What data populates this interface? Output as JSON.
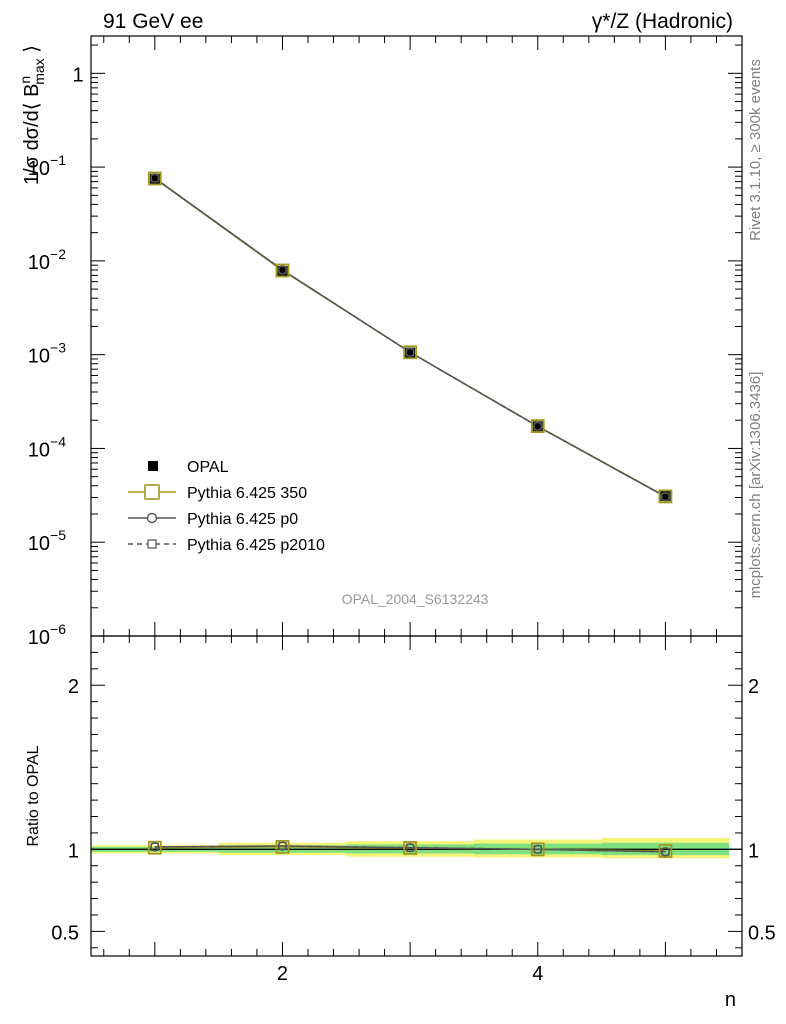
{
  "header": {
    "left": "91 GeV ee",
    "right": "γ*/Z (Hadronic)"
  },
  "side_notes": {
    "rivet": "Rivet 3.1.10, ≥ 300k events",
    "mcplots": "mcplots.cern.ch [arXiv:1306.3436]"
  },
  "analysis_id": "OPAL_2004_S6132243",
  "chart_data": [
    {
      "type": "line",
      "panel": "main",
      "ylabel": "1/σ dσ/d⟨ B^n_max ⟩",
      "yscale": "log",
      "ylim": [
        1e-06,
        2.5
      ],
      "xlim": [
        0.5,
        5.6
      ],
      "x": [
        1,
        2,
        3,
        4,
        5
      ],
      "y_tick_labels": [
        {
          "value": 1,
          "base": "1",
          "exp": ""
        },
        {
          "value": 0.1,
          "base": "10",
          "exp": "−1"
        },
        {
          "value": 0.01,
          "base": "10",
          "exp": "−2"
        },
        {
          "value": 0.001,
          "base": "10",
          "exp": "−3"
        },
        {
          "value": 0.0001,
          "base": "10",
          "exp": "−4"
        },
        {
          "value": 1e-05,
          "base": "10",
          "exp": "−5"
        },
        {
          "value": 1e-06,
          "base": "10",
          "exp": "−6"
        }
      ],
      "series": [
        {
          "name": "OPAL",
          "style": "data",
          "color": "#000000",
          "values": [
            0.075,
            0.0078,
            0.00105,
            0.000172,
            3.1e-05
          ]
        },
        {
          "name": "Pythia 6.425 350",
          "style": "open-square",
          "color": "#a09a1e",
          "values": [
            0.0755,
            0.0079,
            0.00106,
            0.000173,
            3.08e-05
          ]
        },
        {
          "name": "Pythia 6.425 p0",
          "style": "open-circle",
          "color": "#555555",
          "values": [
            0.0762,
            0.008,
            0.00106,
            0.000172,
            3.06e-05
          ]
        },
        {
          "name": "Pythia 6.425 p2010",
          "style": "dashed-square",
          "color": "#555555",
          "values": [
            0.0762,
            0.008,
            0.00106,
            0.000172,
            3.06e-05
          ]
        }
      ],
      "legend_position": "bottom-left"
    },
    {
      "type": "line",
      "panel": "ratio",
      "ylabel": "Ratio to OPAL",
      "xlabel": "n",
      "ylim": [
        0.35,
        2.3
      ],
      "xlim": [
        0.5,
        5.6
      ],
      "x": [
        1,
        2,
        3,
        4,
        5
      ],
      "x_tick_labels": [
        "2",
        "4"
      ],
      "y_tick_labels": [
        "0.5",
        "1",
        "2"
      ],
      "band_inner": [
        {
          "x0": 0.5,
          "x1": 1.5,
          "lo": 0.985,
          "hi": 1.015
        },
        {
          "x0": 1.5,
          "x1": 2.5,
          "lo": 0.98,
          "hi": 1.025
        },
        {
          "x0": 2.5,
          "x1": 3.5,
          "lo": 0.975,
          "hi": 1.03
        },
        {
          "x0": 3.5,
          "x1": 4.5,
          "lo": 0.97,
          "hi": 1.035
        },
        {
          "x0": 4.5,
          "x1": 5.5,
          "lo": 0.965,
          "hi": 1.04
        }
      ],
      "band_outer": [
        {
          "x0": 0.5,
          "x1": 1.5,
          "lo": 0.975,
          "hi": 1.025
        },
        {
          "x0": 1.5,
          "x1": 2.5,
          "lo": 0.965,
          "hi": 1.04
        },
        {
          "x0": 2.5,
          "x1": 3.5,
          "lo": 0.955,
          "hi": 1.05
        },
        {
          "x0": 3.5,
          "x1": 4.5,
          "lo": 0.95,
          "hi": 1.06
        },
        {
          "x0": 4.5,
          "x1": 5.5,
          "lo": 0.945,
          "hi": 1.07
        }
      ],
      "series": [
        {
          "name": "Pythia 6.425 350",
          "style": "open-square",
          "color": "#a09a1e",
          "values": [
            1.01,
            1.015,
            1.008,
            1.0,
            0.99
          ]
        },
        {
          "name": "Pythia 6.425 p0",
          "style": "open-circle",
          "color": "#555555",
          "values": [
            1.015,
            1.02,
            1.01,
            1.0,
            0.985
          ]
        },
        {
          "name": "Pythia 6.425 p2010",
          "style": "dashed-square",
          "color": "#555555",
          "values": [
            1.015,
            1.02,
            1.01,
            1.0,
            0.985
          ]
        }
      ]
    }
  ],
  "colors": {
    "band_inner": "#7fe07f",
    "band_outer": "#f4f47a",
    "series_350": "#a09a1e",
    "series_p0": "#555555"
  }
}
